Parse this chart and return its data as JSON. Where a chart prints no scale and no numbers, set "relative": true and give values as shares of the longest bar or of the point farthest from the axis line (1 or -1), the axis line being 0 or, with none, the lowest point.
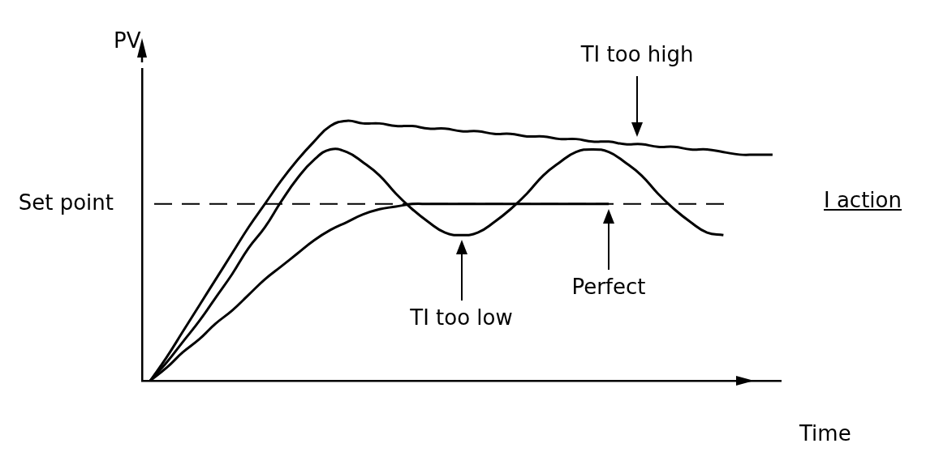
{
  "chart_data": {
    "type": "line",
    "relative": true,
    "xlabel": "Time",
    "ylabel": "PV",
    "marker": "none",
    "categories": [
      null,
      null,
      null,
      null,
      null,
      null,
      null,
      null,
      null,
      null,
      null,
      null,
      null,
      null,
      null,
      null,
      null,
      null,
      null,
      null,
      null,
      null,
      null,
      null,
      null,
      null,
      null,
      null,
      null,
      null,
      null,
      null,
      null,
      null,
      null,
      null,
      null,
      null,
      null
    ],
    "series": [
      {
        "color": "#000000",
        "values": [
          0,
          0.09,
          0.19,
          0.29,
          0.39,
          0.49,
          0.59,
          0.68,
          0.77,
          0.85,
          0.92,
          0.98,
          1,
          0.99,
          0.99,
          0.98,
          0.98,
          0.97,
          0.97,
          0.96,
          0.96,
          0.95,
          0.95,
          0.94,
          0.94,
          0.93,
          0.93,
          0.92,
          0.92,
          0.91,
          0.91,
          0.9,
          0.9,
          0.89,
          0.89,
          0.88,
          0.87,
          0.87,
          0.87
        ]
      },
      {
        "color": "#000000",
        "values": [
          0,
          0.07,
          0.15,
          0.23,
          0.32,
          0.41,
          0.51,
          0.59,
          0.69,
          0.78,
          0.85,
          0.89,
          0.88,
          0.84,
          0.79,
          0.72,
          0.66,
          0.61,
          0.57,
          0.56,
          0.57,
          0.61,
          0.66,
          0.72,
          0.79,
          0.84,
          0.88,
          0.89,
          0.88,
          0.84,
          0.79,
          0.72,
          0.66,
          0.61,
          0.57,
          0.56,
          null,
          null,
          null
        ]
      },
      {
        "color": "#000000",
        "values": [
          0,
          0.05,
          0.11,
          0.16,
          0.22,
          0.27,
          0.33,
          0.39,
          0.44,
          0.49,
          0.54,
          0.58,
          0.61,
          0.64,
          0.66,
          0.67,
          0.68,
          0.68,
          0.68,
          0.68,
          0.68,
          0.68,
          0.68,
          0.68,
          0.68,
          0.68,
          0.68,
          0.68,
          0.68,
          null,
          null,
          null,
          null,
          null,
          null,
          null,
          null,
          null,
          null
        ]
      }
    ],
    "ref_lines": [
      {
        "axis": "y",
        "value": 0.68,
        "label": "Set point",
        "line_style": "dashed",
        "color": "#000000"
      }
    ],
    "annotations": [
      "TI too high",
      "TI too low",
      "Perfect",
      "I action"
    ]
  }
}
